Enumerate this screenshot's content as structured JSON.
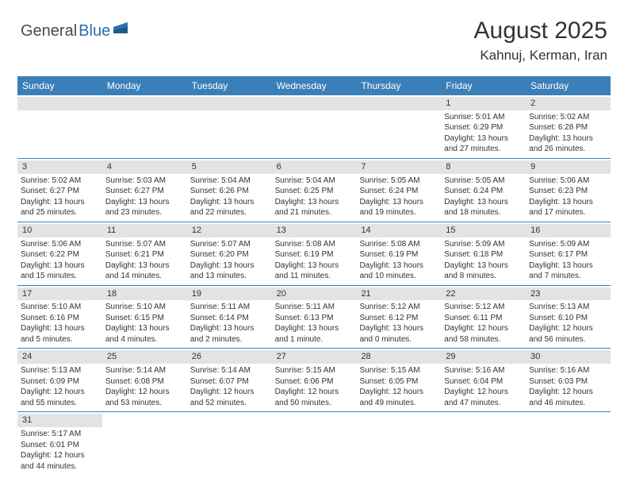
{
  "brand": {
    "part1": "General",
    "part2": "Blue"
  },
  "title": "August 2025",
  "location": "Kahnuj, Kerman, Iran",
  "colors": {
    "header_bg": "#3a7fb8",
    "daynum_bg": "#e3e3e3",
    "border": "#3a7fb8",
    "text": "#333333"
  },
  "days_of_week": [
    "Sunday",
    "Monday",
    "Tuesday",
    "Wednesday",
    "Thursday",
    "Friday",
    "Saturday"
  ],
  "first_weekday_index": 5,
  "days": [
    {
      "n": 1,
      "sr": "5:01 AM",
      "ss": "6:29 PM",
      "dl": "13 hours and 27 minutes."
    },
    {
      "n": 2,
      "sr": "5:02 AM",
      "ss": "6:28 PM",
      "dl": "13 hours and 26 minutes."
    },
    {
      "n": 3,
      "sr": "5:02 AM",
      "ss": "6:27 PM",
      "dl": "13 hours and 25 minutes."
    },
    {
      "n": 4,
      "sr": "5:03 AM",
      "ss": "6:27 PM",
      "dl": "13 hours and 23 minutes."
    },
    {
      "n": 5,
      "sr": "5:04 AM",
      "ss": "6:26 PM",
      "dl": "13 hours and 22 minutes."
    },
    {
      "n": 6,
      "sr": "5:04 AM",
      "ss": "6:25 PM",
      "dl": "13 hours and 21 minutes."
    },
    {
      "n": 7,
      "sr": "5:05 AM",
      "ss": "6:24 PM",
      "dl": "13 hours and 19 minutes."
    },
    {
      "n": 8,
      "sr": "5:05 AM",
      "ss": "6:24 PM",
      "dl": "13 hours and 18 minutes."
    },
    {
      "n": 9,
      "sr": "5:06 AM",
      "ss": "6:23 PM",
      "dl": "13 hours and 17 minutes."
    },
    {
      "n": 10,
      "sr": "5:06 AM",
      "ss": "6:22 PM",
      "dl": "13 hours and 15 minutes."
    },
    {
      "n": 11,
      "sr": "5:07 AM",
      "ss": "6:21 PM",
      "dl": "13 hours and 14 minutes."
    },
    {
      "n": 12,
      "sr": "5:07 AM",
      "ss": "6:20 PM",
      "dl": "13 hours and 13 minutes."
    },
    {
      "n": 13,
      "sr": "5:08 AM",
      "ss": "6:19 PM",
      "dl": "13 hours and 11 minutes."
    },
    {
      "n": 14,
      "sr": "5:08 AM",
      "ss": "6:19 PM",
      "dl": "13 hours and 10 minutes."
    },
    {
      "n": 15,
      "sr": "5:09 AM",
      "ss": "6:18 PM",
      "dl": "13 hours and 8 minutes."
    },
    {
      "n": 16,
      "sr": "5:09 AM",
      "ss": "6:17 PM",
      "dl": "13 hours and 7 minutes."
    },
    {
      "n": 17,
      "sr": "5:10 AM",
      "ss": "6:16 PM",
      "dl": "13 hours and 5 minutes."
    },
    {
      "n": 18,
      "sr": "5:10 AM",
      "ss": "6:15 PM",
      "dl": "13 hours and 4 minutes."
    },
    {
      "n": 19,
      "sr": "5:11 AM",
      "ss": "6:14 PM",
      "dl": "13 hours and 2 minutes."
    },
    {
      "n": 20,
      "sr": "5:11 AM",
      "ss": "6:13 PM",
      "dl": "13 hours and 1 minute."
    },
    {
      "n": 21,
      "sr": "5:12 AM",
      "ss": "6:12 PM",
      "dl": "13 hours and 0 minutes."
    },
    {
      "n": 22,
      "sr": "5:12 AM",
      "ss": "6:11 PM",
      "dl": "12 hours and 58 minutes."
    },
    {
      "n": 23,
      "sr": "5:13 AM",
      "ss": "6:10 PM",
      "dl": "12 hours and 56 minutes."
    },
    {
      "n": 24,
      "sr": "5:13 AM",
      "ss": "6:09 PM",
      "dl": "12 hours and 55 minutes."
    },
    {
      "n": 25,
      "sr": "5:14 AM",
      "ss": "6:08 PM",
      "dl": "12 hours and 53 minutes."
    },
    {
      "n": 26,
      "sr": "5:14 AM",
      "ss": "6:07 PM",
      "dl": "12 hours and 52 minutes."
    },
    {
      "n": 27,
      "sr": "5:15 AM",
      "ss": "6:06 PM",
      "dl": "12 hours and 50 minutes."
    },
    {
      "n": 28,
      "sr": "5:15 AM",
      "ss": "6:05 PM",
      "dl": "12 hours and 49 minutes."
    },
    {
      "n": 29,
      "sr": "5:16 AM",
      "ss": "6:04 PM",
      "dl": "12 hours and 47 minutes."
    },
    {
      "n": 30,
      "sr": "5:16 AM",
      "ss": "6:03 PM",
      "dl": "12 hours and 46 minutes."
    },
    {
      "n": 31,
      "sr": "5:17 AM",
      "ss": "6:01 PM",
      "dl": "12 hours and 44 minutes."
    }
  ],
  "labels": {
    "sunrise": "Sunrise:",
    "sunset": "Sunset:",
    "daylight": "Daylight:"
  }
}
